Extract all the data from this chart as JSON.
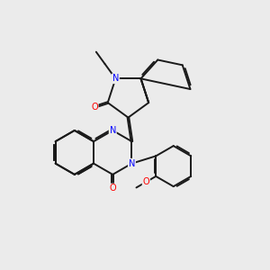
{
  "bg": "#ebebeb",
  "bond_color": "#1a1a1a",
  "N_color": "#0000ff",
  "O_color": "#ff0000",
  "lw": 1.4,
  "dbo": 0.055,
  "figsize": [
    3.0,
    3.0
  ],
  "dpi": 100,
  "xlim": [
    0,
    10
  ],
  "ylim": [
    0,
    10
  ]
}
